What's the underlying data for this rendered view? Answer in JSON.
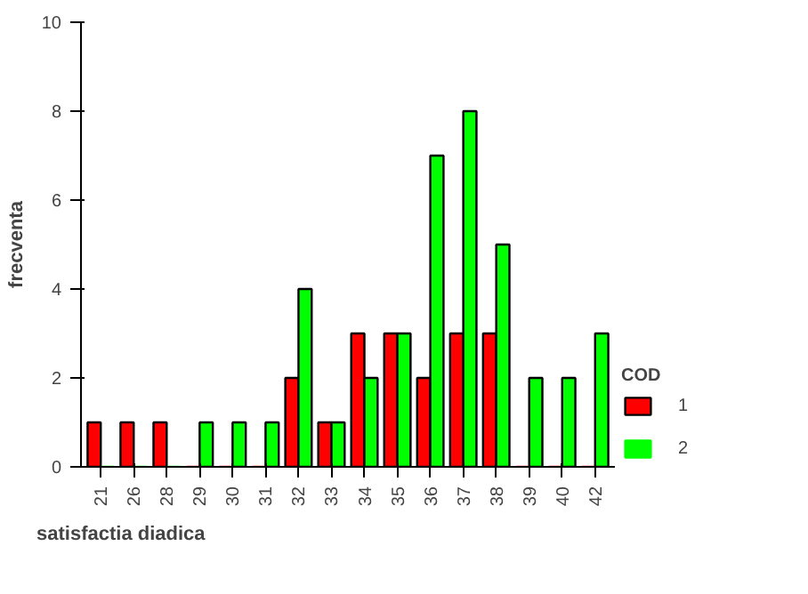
{
  "chart_data": {
    "type": "bar",
    "xlabel": "satisfactia diadica",
    "ylabel": "frecventa",
    "legend_title": "COD",
    "legend": "right",
    "categories": [
      "21",
      "26",
      "28",
      "29",
      "30",
      "31",
      "32",
      "33",
      "34",
      "35",
      "36",
      "37",
      "38",
      "39",
      "40",
      "42"
    ],
    "ylim": [
      0,
      10
    ],
    "yticks": [
      0,
      2,
      4,
      6,
      8,
      10
    ],
    "series": [
      {
        "name": "1",
        "color": "#ff0000",
        "values": [
          1,
          1,
          1,
          0,
          0,
          0,
          2,
          1,
          3,
          3,
          2,
          3,
          3,
          0,
          0,
          0
        ]
      },
      {
        "name": "2",
        "color": "#00ff00",
        "values": [
          0,
          0,
          0,
          1,
          1,
          1,
          4,
          1,
          2,
          3,
          7,
          8,
          5,
          2,
          2,
          3
        ]
      }
    ]
  }
}
